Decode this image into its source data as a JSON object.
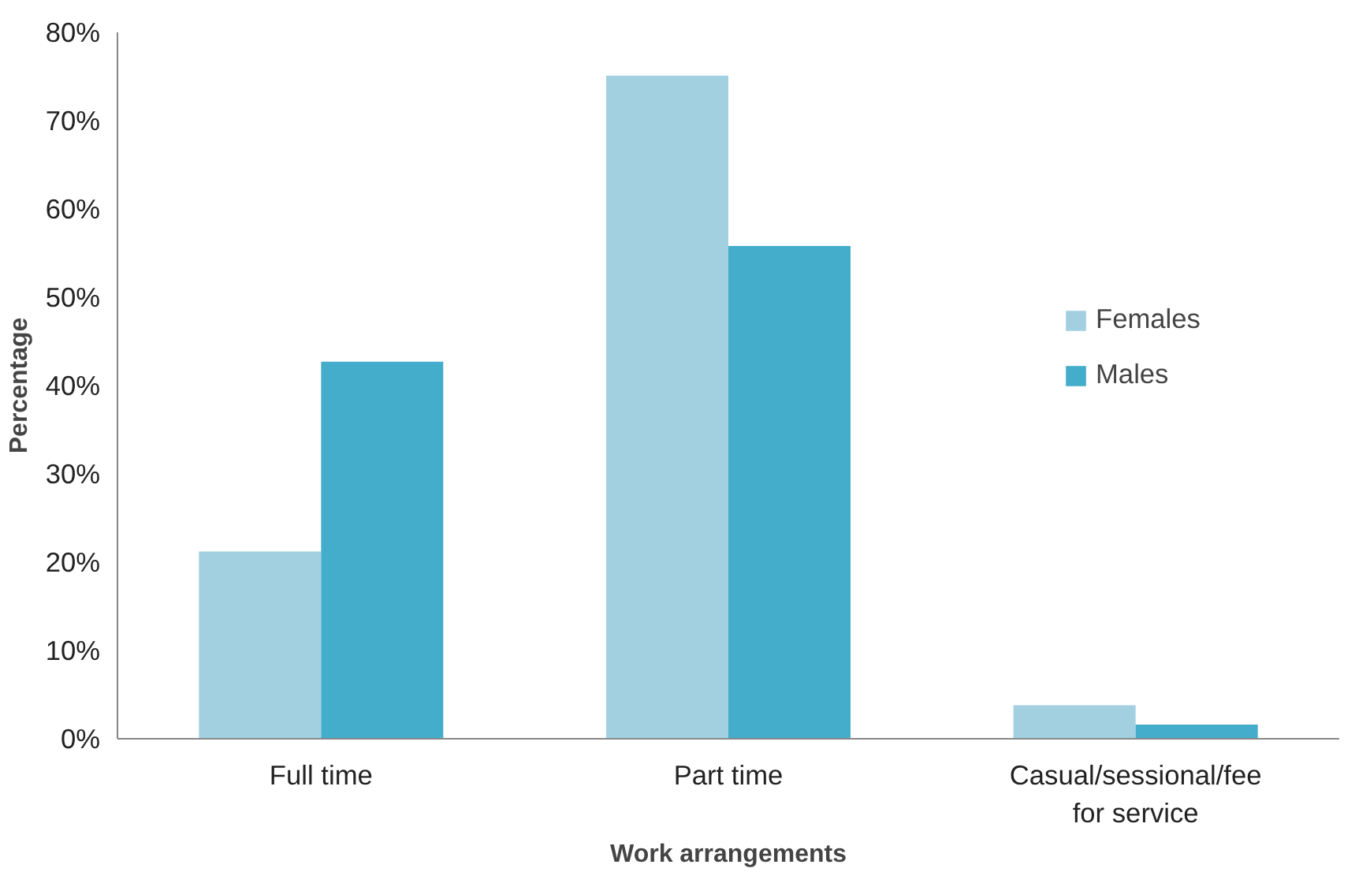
{
  "chart_data": {
    "type": "bar",
    "xlabel": "Work arrangements",
    "ylabel": "Percentage",
    "categories": [
      "Full time",
      "Part time",
      "Casual/sessional/fee for service"
    ],
    "series": [
      {
        "name": "Females",
        "color": "#a3d0e0",
        "values": [
          21.2,
          75.1,
          3.8
        ]
      },
      {
        "name": "Males",
        "color": "#43adcb",
        "values": [
          42.7,
          55.8,
          1.6
        ]
      }
    ],
    "ylim": [
      0,
      80
    ],
    "yticks": [
      {
        "value": 0,
        "label": "0%"
      },
      {
        "value": 10,
        "label": "10%"
      },
      {
        "value": 20,
        "label": "20%"
      },
      {
        "value": 30,
        "label": "30%"
      },
      {
        "value": 40,
        "label": "40%"
      },
      {
        "value": 50,
        "label": "50%"
      },
      {
        "value": 60,
        "label": "60%"
      },
      {
        "value": 70,
        "label": "70%"
      },
      {
        "value": 80,
        "label": "80%"
      }
    ],
    "grid": false,
    "legend": "right"
  }
}
